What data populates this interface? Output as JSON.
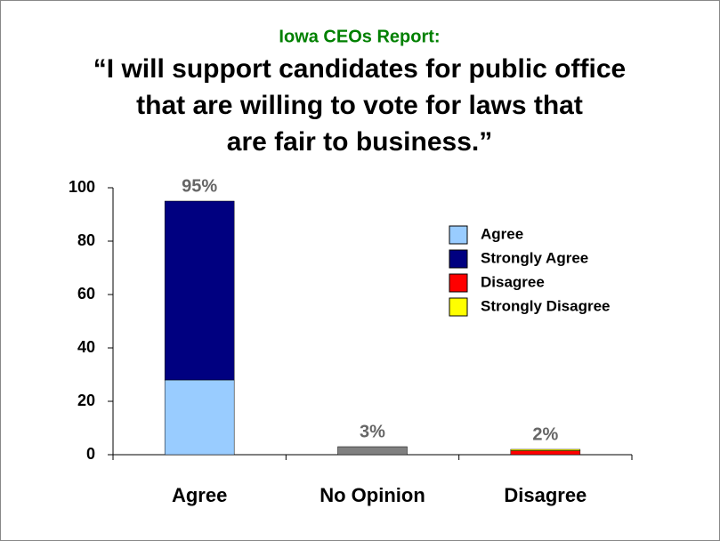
{
  "chart_data": {
    "type": "stacked_bar",
    "subtitle": "Iowa CEOs Report:",
    "title": [
      "“I will support candidates for public office",
      "that are willing to vote for laws that",
      "are fair to business.”"
    ],
    "categories": [
      "Agree",
      "No Opinion",
      "Disagree"
    ],
    "series": [
      {
        "name": "Agree",
        "color": "#99ccff",
        "values": [
          28,
          null,
          null
        ]
      },
      {
        "name": "Strongly Agree",
        "color": "#000080",
        "values": [
          67,
          null,
          null
        ]
      },
      {
        "name": "Disagree",
        "color": "#ff0000",
        "values": [
          null,
          null,
          1.5
        ]
      },
      {
        "name": "Strongly Disagree",
        "color": "#ffff00",
        "values": [
          null,
          null,
          0.5
        ]
      },
      {
        "color": "#808080",
        "values": [
          null,
          3,
          null
        ]
      }
    ],
    "values": [
      95,
      3,
      2
    ],
    "value_labels": [
      "95%",
      "3%",
      "2%"
    ],
    "ylim": [
      0,
      100
    ],
    "yticks": [
      0,
      20,
      40,
      60,
      80,
      100
    ],
    "grid": false
  }
}
